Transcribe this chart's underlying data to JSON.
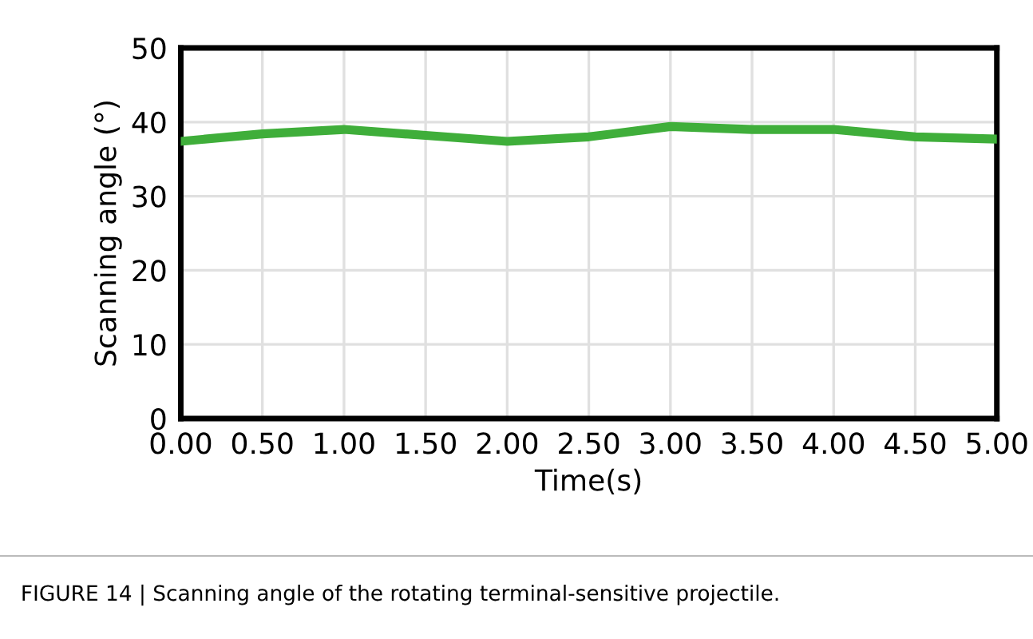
{
  "chart_data": {
    "type": "line",
    "xlabel": "Time(s)",
    "ylabel": "Scanning angle (°)",
    "x": [
      0,
      0.5,
      1,
      1.5,
      2,
      2.5,
      3,
      3.5,
      4,
      4.5,
      5
    ],
    "series": [
      {
        "color": "#3fae3a",
        "values": [
          37.4,
          38.4,
          39.0,
          38.2,
          37.4,
          38.0,
          39.4,
          39.0,
          39.0,
          38.0,
          37.7
        ]
      }
    ],
    "xlim": [
      0,
      5
    ],
    "xticks": [
      {
        "value": 0,
        "label": "0.00"
      },
      {
        "value": 0.5,
        "label": "0.50"
      },
      {
        "value": 1,
        "label": "1.00"
      },
      {
        "value": 1.5,
        "label": "1.50"
      },
      {
        "value": 2,
        "label": "2.00"
      },
      {
        "value": 2.5,
        "label": "2.50"
      },
      {
        "value": 3,
        "label": "3.00"
      },
      {
        "value": 3.5,
        "label": "3.50"
      },
      {
        "value": 4,
        "label": "4.00"
      },
      {
        "value": 4.5,
        "label": "4.50"
      },
      {
        "value": 5,
        "label": "5.00"
      }
    ],
    "ylim": [
      0,
      50
    ],
    "yticks": [
      0,
      10,
      20,
      30,
      40,
      50
    ],
    "grid": true,
    "marker": "none",
    "line_style": "solid",
    "annotations": [
      "FIGURE 14 | Scanning angle of the rotating terminal-sensitive projectile."
    ]
  }
}
